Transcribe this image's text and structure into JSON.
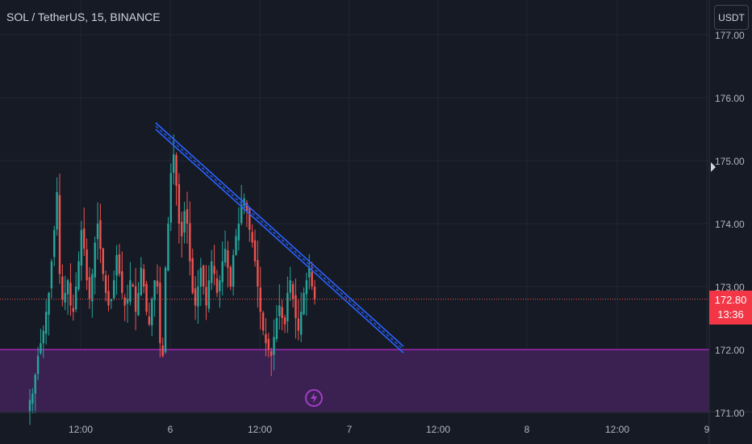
{
  "header": {
    "title": "SOL / TetherUS, 15, BINANCE"
  },
  "currency_button": {
    "label": "USDT"
  },
  "last_price": {
    "value": "172.80",
    "countdown": "13:36"
  },
  "icons": {
    "alert": "lightning-icon",
    "scale_marker": "triangle-marker-icon"
  },
  "colors": {
    "background": "#161a25",
    "grid": "#232733",
    "candle_up": "#26a69a",
    "candle_down": "#ef5350",
    "trendline": "#2962ff",
    "support_zone": "#3b2152",
    "support_line": "#9c27b0",
    "price_tag": "#f23645"
  },
  "chart_data": {
    "type": "candlestick",
    "symbol": "SOL / TetherUS",
    "interval": "15",
    "exchange": "BINANCE",
    "x_tick_labels": [
      "12:00",
      "6",
      "12:00",
      "7",
      "12:00",
      "8",
      "12:00",
      "9"
    ],
    "y_tick_labels": [
      "177.00",
      "176.00",
      "175.00",
      "174.00",
      "173.00",
      "172.00",
      "171.00"
    ],
    "ylim": [
      171.0,
      177.3
    ],
    "last_price": 172.8,
    "support_zone": {
      "top": 172.0,
      "bottom": 171.0
    },
    "trendline_channel": {
      "start": 175.55,
      "end": 172.0
    },
    "close_path": [
      171.2,
      171.3,
      171.6,
      171.9,
      172.1,
      172.3,
      172.6,
      172.9,
      173.4,
      173.9,
      174.5,
      173.2,
      172.8,
      172.9,
      173.1,
      172.7,
      172.6,
      173.0,
      173.4,
      173.9,
      173.6,
      173.1,
      172.8,
      173.2,
      173.7,
      174.0,
      173.6,
      173.2,
      172.9,
      172.7,
      172.8,
      173.1,
      173.5,
      173.2,
      172.9,
      172.7,
      172.8,
      173.1,
      173.0,
      172.6,
      172.9,
      173.3,
      173.0,
      172.6,
      172.4,
      172.8,
      173.1,
      173.0,
      172.1,
      171.9,
      173.3,
      174.0,
      174.8,
      175.1,
      174.6,
      174.0,
      173.8,
      174.2,
      174.0,
      173.4,
      172.9,
      172.7,
      173.0,
      173.3,
      173.0,
      172.7,
      173.1,
      173.4,
      173.2,
      172.9,
      173.1,
      173.4,
      173.6,
      173.3,
      173.0,
      173.5,
      173.8,
      174.0,
      174.3,
      174.4,
      174.2,
      173.9,
      173.7,
      173.4,
      173.0,
      172.6,
      172.3,
      172.1,
      172.0,
      171.9,
      172.2,
      172.5,
      172.7,
      172.5,
      172.4,
      172.9,
      173.1,
      172.8,
      172.5,
      172.3,
      172.6,
      172.9,
      173.1,
      173.3,
      173.0,
      172.8
    ]
  }
}
